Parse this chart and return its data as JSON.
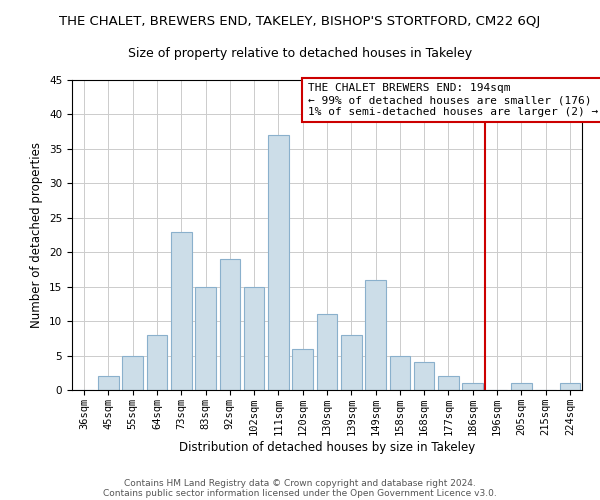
{
  "title": "THE CHALET, BREWERS END, TAKELEY, BISHOP'S STORTFORD, CM22 6QJ",
  "subtitle": "Size of property relative to detached houses in Takeley",
  "xlabel": "Distribution of detached houses by size in Takeley",
  "ylabel": "Number of detached properties",
  "bin_labels": [
    "36sqm",
    "45sqm",
    "55sqm",
    "64sqm",
    "73sqm",
    "83sqm",
    "92sqm",
    "102sqm",
    "111sqm",
    "120sqm",
    "130sqm",
    "139sqm",
    "149sqm",
    "158sqm",
    "168sqm",
    "177sqm",
    "186sqm",
    "196sqm",
    "205sqm",
    "215sqm",
    "224sqm"
  ],
  "bar_values": [
    0,
    2,
    5,
    8,
    23,
    15,
    19,
    15,
    37,
    6,
    11,
    8,
    16,
    5,
    4,
    2,
    1,
    0,
    1,
    0,
    1
  ],
  "bar_color": "#ccdde8",
  "bar_edge_color": "#8ab0cc",
  "vline_x": 16.5,
  "vline_color": "#cc0000",
  "ylim": [
    0,
    45
  ],
  "yticks": [
    0,
    5,
    10,
    15,
    20,
    25,
    30,
    35,
    40,
    45
  ],
  "annotation_title": "THE CHALET BREWERS END: 194sqm",
  "annotation_line1": "← 99% of detached houses are smaller (176)",
  "annotation_line2": "1% of semi-detached houses are larger (2) →",
  "annotation_box_color": "#ffffff",
  "annotation_box_edge": "#cc0000",
  "footer1": "Contains HM Land Registry data © Crown copyright and database right 2024.",
  "footer2": "Contains public sector information licensed under the Open Government Licence v3.0.",
  "background_color": "#ffffff",
  "grid_color": "#cccccc",
  "title_fontsize": 9.5,
  "subtitle_fontsize": 9,
  "axis_label_fontsize": 8.5,
  "tick_fontsize": 7.5,
  "annotation_fontsize": 8,
  "footer_fontsize": 6.5
}
